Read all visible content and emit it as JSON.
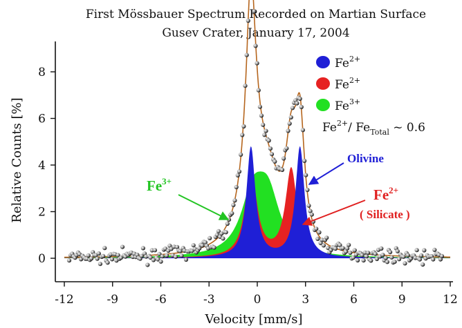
{
  "chart_data": {
    "type": "area",
    "title": "First Mössbauer Spectrum Recorded on Martian Surface",
    "subtitle": "Gusev Crater, January 17, 2004",
    "xlabel": "Velocity [mm/s]",
    "ylabel": "Relative Counts [%]",
    "xlim": [
      -12,
      12
    ],
    "ylim": [
      -1,
      8.8
    ],
    "x_ticks": [
      -12,
      -9,
      -6,
      -3,
      0,
      3,
      6,
      9,
      12
    ],
    "y_ticks": [
      0,
      2,
      4,
      6,
      8
    ],
    "grid": false,
    "legend": {
      "placement": "top-right",
      "entries": [
        {
          "base": "Fe",
          "sup": "2+",
          "color": "#1f1fd6"
        },
        {
          "base": "Fe",
          "sup": "2+",
          "color": "#e62222"
        },
        {
          "base": "Fe",
          "sup": "3+",
          "color": "#22e022"
        }
      ]
    },
    "ratio_note": {
      "a": "Fe",
      "a_sup": "2+",
      "sep": "/ ",
      "b": "Fe",
      "b_sub": "Total",
      "tail": " ~ 0.6"
    },
    "series": [
      {
        "name": "Fe2+ (Olivine)",
        "color": "#1f1fd6",
        "doublet": {
          "center": 1.13,
          "split": 3.05,
          "width": 0.34,
          "amp": 4.75
        }
      },
      {
        "name": "Fe2+ (Silicate)",
        "color": "#e62222",
        "doublet": {
          "center": 0.86,
          "split": 2.5,
          "width": 0.44,
          "amp": 3.8
        }
      },
      {
        "name": "Fe3+",
        "color": "#22e022",
        "doublet": {
          "center": 0.2,
          "split": 0.95,
          "width": 0.9,
          "amp": 2.38
        }
      }
    ],
    "fit_line_color": "#b5651d",
    "measured_points": "scattered black/white circles around the fitted envelope, noise approx ±0.35 %",
    "annotations": {
      "fe3": {
        "base": "Fe",
        "sup": "3+",
        "color": "#22c422"
      },
      "olivine": {
        "text": "Olivine",
        "color": "#1f1fd6"
      },
      "fe2_silicate": {
        "base": "Fe",
        "sup": "2+",
        "sub_text": "( Silicate )",
        "color": "#e02020"
      }
    }
  }
}
